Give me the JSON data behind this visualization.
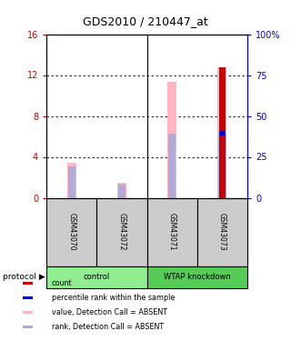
{
  "title": "GDS2010 / 210447_at",
  "samples": [
    "GSM43070",
    "GSM43072",
    "GSM43071",
    "GSM43073"
  ],
  "group_boundaries": [
    1.5
  ],
  "group_boxes": [
    {
      "label": "control",
      "xstart": 0,
      "xend": 2,
      "color": "#90EE90"
    },
    {
      "label": "WTAP knockdown",
      "xstart": 2,
      "xend": 4,
      "color": "#55CC55"
    }
  ],
  "ylim_left": [
    0,
    16
  ],
  "ylim_right": [
    0,
    100
  ],
  "yticks_left": [
    0,
    4,
    8,
    12,
    16
  ],
  "ytick_labels_left": [
    "0",
    "4",
    "8",
    "12",
    "16"
  ],
  "yticks_right": [
    0,
    25,
    50,
    75,
    100
  ],
  "ytick_labels_right": [
    "0",
    "25",
    "50",
    "75",
    "100%"
  ],
  "pink_values": [
    3.45,
    1.5,
    11.3,
    12.8
  ],
  "blue_rank_values": [
    3.1,
    1.25,
    6.3,
    6.4
  ],
  "red_count_values": [
    0,
    0,
    0,
    12.8
  ],
  "blue_dot_pct": [
    0,
    0,
    0,
    40
  ],
  "bar_width": 0.18,
  "red_bar_width": 0.12,
  "left_axis_color": "#CC0000",
  "right_axis_color": "#0000CC",
  "legend_items": [
    {
      "label": "count",
      "color": "#CC0000"
    },
    {
      "label": "percentile rank within the sample",
      "color": "#0000CC"
    },
    {
      "label": "value, Detection Call = ABSENT",
      "color": "#FFB6C1"
    },
    {
      "label": "rank, Detection Call = ABSENT",
      "color": "#AAAADD"
    }
  ]
}
